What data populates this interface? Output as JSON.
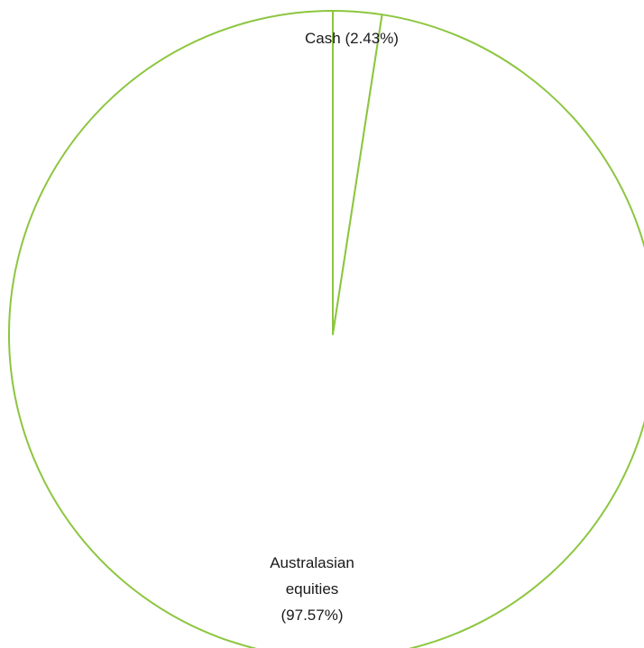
{
  "colors": {
    "slice_stroke": "#8cc63f",
    "slice_fill": "#ffffff",
    "label_text": "#1a1a1a"
  },
  "chart_data": {
    "type": "pie",
    "slices": [
      {
        "label": "Cash (2.43%)",
        "value": 2.43
      },
      {
        "label": "Australasian equities (97.57%)",
        "label_lines": [
          "Australasian",
          "equities",
          "(97.57%)"
        ],
        "value": 97.57
      }
    ],
    "start_angle": "12 o'clock",
    "direction": "clockwise",
    "legend": "none"
  }
}
